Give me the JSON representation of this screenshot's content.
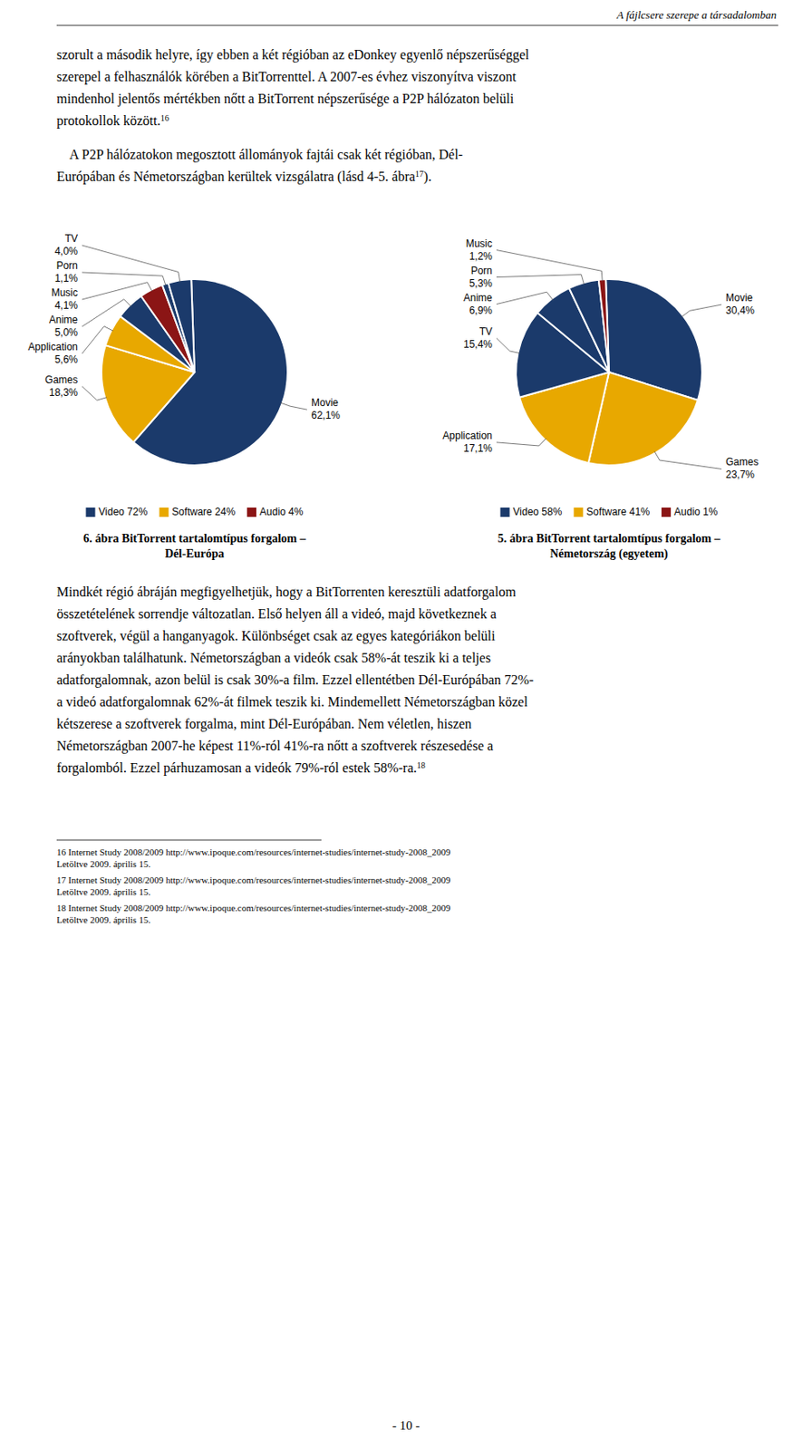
{
  "page": {
    "header": "A fájlcsere szerepe a társadalomban",
    "paragraphs": [
      {
        "lines": [
          "szorult a második helyre, így ebben a két régióban az eDonkey egyenlő népszerűséggel",
          "szerepel a felhasználók körében a BitTorrenttel. A 2007-es évhez viszonyítva viszont",
          "mindenhol jelentős mértékben nőtt a BitTorrent népszerűsége a P2P hálózaton belüli",
          "protokollok között."
        ],
        "note": "16"
      },
      {
        "lines": [
          "    A P2P hálózatokon megosztott állományok fajtái csak két régióban, Dél-",
          "Európában és Németországban kerültek vizsgálatra (lásd 4-5. ábra"
        ],
        "note": "17",
        "after_note": ")."
      },
      {
        "lines": [
          "Mindkét régió ábráján megfigyelhetjük, hogy a BitTorrenten keresztüli adatforgalom",
          "összetételének sorrendje változatlan. Első helyen áll a videó, majd következnek a",
          "szoftverek, végül a hanganyagok. Különbséget csak az egyes kategóriákon belüli",
          "arányokban találhatunk. Németországban a videók csak 58%-át teszik ki a teljes",
          "adatforgalomnak, azon belül is csak 30%-a film. Ezzel ellentétben Dél-Európában 72%-",
          "a videó adatforgalomnak 62%-át filmek teszik ki. Mindemellett Németországban közel",
          "kétszerese a szoftverek forgalma, mint Dél-Európában. Nem véletlen, hiszen",
          "Németországban 2007-he képest 11%-ról 41%-ra nőtt a szoftverek részesedése a",
          "forgalomból. Ezzel párhuzamosan a videók 79%-ról estek 58%-ra."
        ],
        "note": "18"
      }
    ],
    "footnotes": [
      [
        "16 Internet Study 2008/2009 http://www.ipoque.com/resources/internet-studies/internet-study-2008_2009",
        "Letöltve 2009. április 15."
      ],
      [
        "17 Internet Study 2008/2009 http://www.ipoque.com/resources/internet-studies/internet-study-2008_2009",
        "Letöltve 2009. április 15."
      ],
      [
        "18 Internet Study 2008/2009 http://www.ipoque.com/resources/internet-studies/internet-study-2008_2009",
        "Letöltve 2009. április 15."
      ]
    ],
    "page_number": "- 10 -"
  },
  "chart_data": [
    {
      "type": "pie",
      "title": "6. ábra BitTorrent tartalomtípus forgalom –\nDél-Európa",
      "categories": [
        "Movie",
        "Games",
        "Application",
        "Anime",
        "Music",
        "Porn",
        "TV"
      ],
      "values": [
        62.1,
        18.3,
        5.6,
        5.0,
        4.1,
        1.1,
        4.0
      ],
      "value_labels": [
        "62,1%",
        "18,3%",
        "5,6%",
        "5,0%",
        "4,1%",
        "1,1%",
        "4,0%"
      ],
      "colors": [
        "#1b3a6b",
        "#e8a800",
        "#e8a800",
        "#1b3a6b",
        "#8b1515",
        "#1b3a6b",
        "#1b3a6b"
      ],
      "data_labels": true,
      "groups": [
        {
          "name": "Video 72%",
          "color": "#1b3a6b"
        },
        {
          "name": "Software 24%",
          "color": "#e8a800"
        },
        {
          "name": "Audio 4%",
          "color": "#8b1515"
        }
      ]
    },
    {
      "type": "pie",
      "title": "5. ábra BitTorrent tartalomtípus forgalom –\nNémetország (egyetem)",
      "categories": [
        "Movie",
        "Games",
        "Application",
        "TV",
        "Anime",
        "Porn",
        "Music"
      ],
      "values": [
        30.4,
        23.7,
        17.1,
        15.4,
        6.9,
        5.3,
        1.2
      ],
      "value_labels": [
        "30,4%",
        "23,7%",
        "17,1%",
        "15,4%",
        "6,9%",
        "5,3%",
        "1,2%"
      ],
      "colors": [
        "#1b3a6b",
        "#e8a800",
        "#e8a800",
        "#1b3a6b",
        "#1b3a6b",
        "#1b3a6b",
        "#8b1515"
      ],
      "data_labels": true,
      "groups": [
        {
          "name": "Video 58%",
          "color": "#1b3a6b"
        },
        {
          "name": "Software 41%",
          "color": "#e8a800"
        },
        {
          "name": "Audio 1%",
          "color": "#8b1515"
        }
      ]
    }
  ]
}
